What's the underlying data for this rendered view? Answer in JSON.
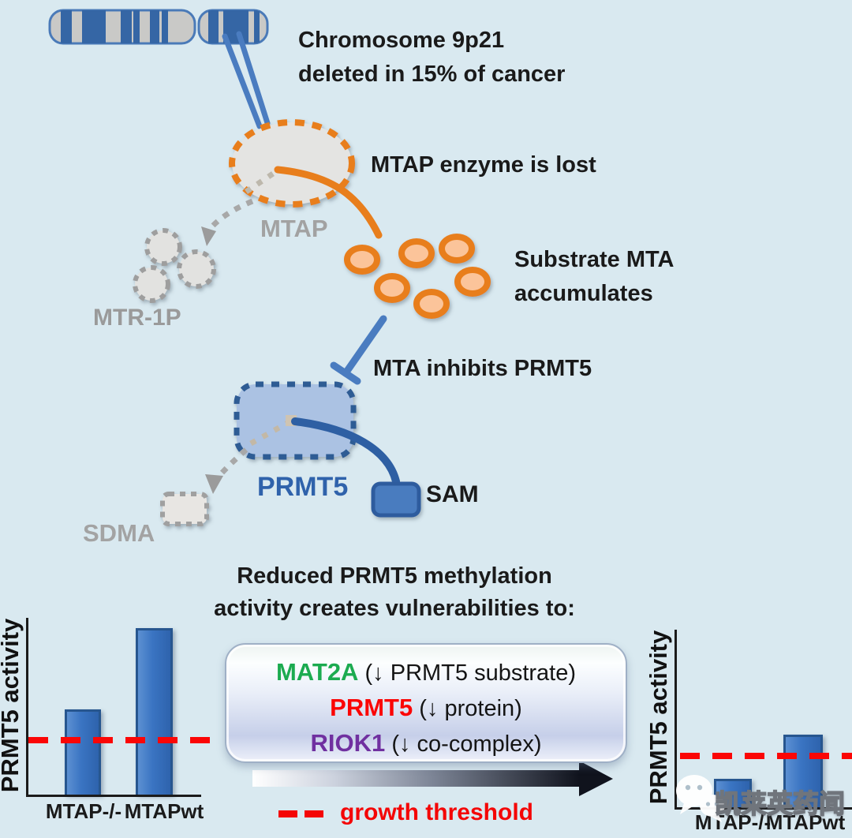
{
  "colors": {
    "background": "#d9e9f0",
    "accent_blue": "#4a7cc0",
    "dark_blue": "#2e5fa3",
    "orange": "#e87e1c",
    "orange_light": "#fbc49a",
    "gray": "#9e9e9e",
    "red": "#f40606",
    "green": "#1cab50",
    "purple": "#7030a0",
    "bar_blue": "#3a74c2"
  },
  "pathway": {
    "chromosome_caption": {
      "line1": "Chromosome 9p21",
      "line2": "deleted in 15% of cancer"
    },
    "mtap_label": "MTAP",
    "mtap_caption": "MTAP enzyme is lost",
    "mtr1p_label": "MTR-1P",
    "mta_caption": {
      "line1": "Substrate MTA",
      "line2": "accumulates"
    },
    "inhibition_caption": "MTA inhibits PRMT5",
    "prmt5_label": "PRMT5",
    "sam_label": "SAM",
    "sdma_label": "SDMA"
  },
  "vulnerabilities": {
    "heading": {
      "line1": "Reduced PRMT5 methylation",
      "line2": "activity creates vulnerabilities to:"
    },
    "items": [
      {
        "gene": "MAT2A",
        "color": "#1cab50",
        "effect": "(↓ PRMT5 substrate)"
      },
      {
        "gene": "PRMT5",
        "color": "#fb0505",
        "effect": "(↓ protein)"
      },
      {
        "gene": "RIOK1",
        "color": "#7030a0",
        "effect": "(↓ co-complex)"
      }
    ]
  },
  "legend": {
    "growth_threshold": "growth threshold"
  },
  "chart_data": [
    {
      "type": "bar",
      "position": "bottom-left",
      "categories": [
        "MTAP-/-",
        "MTAPwt"
      ],
      "values": [
        48,
        94
      ],
      "threshold": 31,
      "ylabel": "PRMT5 activity",
      "xlabel": "",
      "ylim": [
        0,
        100
      ],
      "grid": false
    },
    {
      "type": "bar",
      "position": "bottom-right",
      "categories": [
        "MTAP-/-",
        "MTAPwt"
      ],
      "values": [
        16,
        41
      ],
      "threshold": 29,
      "ylabel": "PRMT5 activity",
      "xlabel": "",
      "ylim": [
        0,
        100
      ],
      "grid": false
    }
  ],
  "watermark": {
    "icon": "wechat-icon",
    "text": "凯莱英药闻"
  }
}
